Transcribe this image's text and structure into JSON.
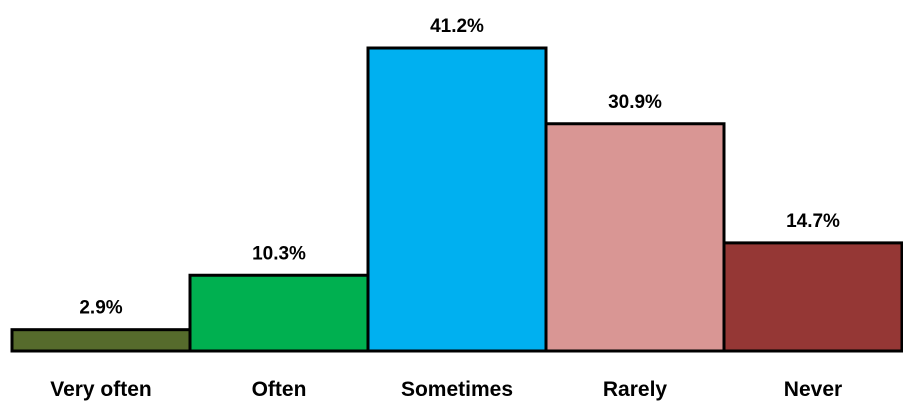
{
  "chart_data": {
    "type": "bar",
    "categories": [
      "Very often",
      "Often",
      "Sometimes",
      "Rarely",
      "Never"
    ],
    "values": [
      2.9,
      10.3,
      41.2,
      30.9,
      14.7
    ],
    "value_labels": [
      "2.9%",
      "10.3%",
      "41.2%",
      "30.9%",
      "14.7%"
    ],
    "unit": "%",
    "colors": [
      "#566b2c",
      "#00b050",
      "#00b0f0",
      "#d99694",
      "#953735"
    ],
    "ylim": [
      0,
      41.2
    ],
    "grid": false,
    "legend": "none"
  }
}
